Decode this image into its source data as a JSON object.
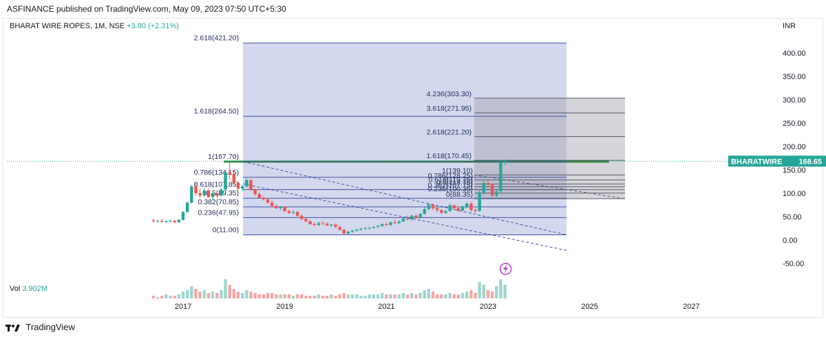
{
  "header": {
    "publisher_line": "ASFINANCE published on TradingView.com, May 09, 2023 07:50 UTC+5:30"
  },
  "legend": {
    "symbol": "BHARAT WIRE ROPES, 1M, NSE",
    "change": "+3.80 (+2.31%)"
  },
  "volume": {
    "label": "Vol",
    "value": "3.902M"
  },
  "price_tag": {
    "symbol": "BHARATWIRE",
    "price": "168.65"
  },
  "currency": "INR",
  "footer": {
    "brand": "TradingView"
  },
  "colors": {
    "up": "#26a69a",
    "down": "#ef5350",
    "fib_zone": "#c5cbe8",
    "ext_zone": "#a3a3ad"
  },
  "chart_data": {
    "type": "candlestick",
    "y_axis_ticks": [
      "400.00",
      "350.00",
      "300.00",
      "250.00",
      "200.00",
      "150.00",
      "100.00",
      "50.00",
      "0.00",
      "-50.00"
    ],
    "x_axis_ticks": [
      "2017",
      "2019",
      "2021",
      "2023",
      "2025",
      "2027"
    ],
    "ylim": [
      -65,
      440
    ],
    "fib_retracement": [
      {
        "label": "2.618(421.20)",
        "value": 421.2
      },
      {
        "label": "1.618(264.50)",
        "value": 264.5
      },
      {
        "label": "1(167.70)",
        "value": 167.7
      },
      {
        "label": "0.786(134.15)",
        "value": 134.15
      },
      {
        "label": "0.618(107.85)",
        "value": 107.85
      },
      {
        "label": "0.5(89.35)",
        "value": 89.35
      },
      {
        "label": "0.382(70.85)",
        "value": 70.85
      },
      {
        "label": "0.236(47.95)",
        "value": 47.95
      },
      {
        "label": "0(11.00)",
        "value": 11.0
      }
    ],
    "fib_extension": [
      {
        "label": "4.236(303.30)",
        "value": 303.3
      },
      {
        "label": "3.618(271.95)",
        "value": 271.95
      },
      {
        "label": "2.618(221.20)",
        "value": 221.2
      },
      {
        "label": "1.618(170.45)",
        "value": 170.45
      },
      {
        "label": "1(139.10)",
        "value": 139.1
      },
      {
        "label": "0.786(128.25)",
        "value": 128.25
      },
      {
        "label": "0.618(119.75)",
        "value": 119.75
      },
      {
        "label": "0.5(113.75)",
        "value": 113.75
      },
      {
        "label": "0.382(107.75)",
        "value": 107.75
      },
      {
        "label": "0.236(100.35)",
        "value": 100.35
      },
      {
        "label": "0(88.35)",
        "value": 88.35
      }
    ],
    "candles": [
      {
        "date": "2016-06",
        "o": 42,
        "h": 46,
        "l": 38,
        "c": 40
      },
      {
        "date": "2016-07",
        "o": 40,
        "h": 44,
        "l": 37,
        "c": 41
      },
      {
        "date": "2016-08",
        "o": 41,
        "h": 45,
        "l": 38,
        "c": 39
      },
      {
        "date": "2016-09",
        "o": 39,
        "h": 42,
        "l": 36,
        "c": 40
      },
      {
        "date": "2016-10",
        "o": 40,
        "h": 44,
        "l": 38,
        "c": 41
      },
      {
        "date": "2016-11",
        "o": 41,
        "h": 43,
        "l": 36,
        "c": 38
      },
      {
        "date": "2016-12",
        "o": 38,
        "h": 45,
        "l": 37,
        "c": 43
      },
      {
        "date": "2017-01",
        "o": 43,
        "h": 62,
        "l": 42,
        "c": 60
      },
      {
        "date": "2017-02",
        "o": 60,
        "h": 82,
        "l": 58,
        "c": 80
      },
      {
        "date": "2017-03",
        "o": 80,
        "h": 118,
        "l": 78,
        "c": 115
      },
      {
        "date": "2017-04",
        "o": 115,
        "h": 122,
        "l": 95,
        "c": 100
      },
      {
        "date": "2017-05",
        "o": 100,
        "h": 110,
        "l": 90,
        "c": 95
      },
      {
        "date": "2017-06",
        "o": 95,
        "h": 112,
        "l": 92,
        "c": 106
      },
      {
        "date": "2017-07",
        "o": 106,
        "h": 110,
        "l": 90,
        "c": 92
      },
      {
        "date": "2017-08",
        "o": 92,
        "h": 104,
        "l": 86,
        "c": 100
      },
      {
        "date": "2017-09",
        "o": 100,
        "h": 106,
        "l": 92,
        "c": 95
      },
      {
        "date": "2017-10",
        "o": 95,
        "h": 110,
        "l": 93,
        "c": 108
      },
      {
        "date": "2017-11",
        "o": 108,
        "h": 150,
        "l": 105,
        "c": 145
      },
      {
        "date": "2017-12",
        "o": 145,
        "h": 168,
        "l": 130,
        "c": 140
      },
      {
        "date": "2018-01",
        "o": 140,
        "h": 150,
        "l": 118,
        "c": 122
      },
      {
        "date": "2018-02",
        "o": 122,
        "h": 125,
        "l": 105,
        "c": 110
      },
      {
        "date": "2018-03",
        "o": 110,
        "h": 118,
        "l": 104,
        "c": 115
      },
      {
        "date": "2018-04",
        "o": 115,
        "h": 132,
        "l": 112,
        "c": 128
      },
      {
        "date": "2018-05",
        "o": 128,
        "h": 130,
        "l": 105,
        "c": 108
      },
      {
        "date": "2018-06",
        "o": 108,
        "h": 110,
        "l": 95,
        "c": 98
      },
      {
        "date": "2018-07",
        "o": 98,
        "h": 102,
        "l": 88,
        "c": 90
      },
      {
        "date": "2018-08",
        "o": 90,
        "h": 94,
        "l": 84,
        "c": 87
      },
      {
        "date": "2018-09",
        "o": 87,
        "h": 90,
        "l": 78,
        "c": 80
      },
      {
        "date": "2018-10",
        "o": 80,
        "h": 84,
        "l": 70,
        "c": 73
      },
      {
        "date": "2018-11",
        "o": 73,
        "h": 76,
        "l": 66,
        "c": 68
      },
      {
        "date": "2018-12",
        "o": 68,
        "h": 73,
        "l": 64,
        "c": 70
      },
      {
        "date": "2019-01",
        "o": 70,
        "h": 72,
        "l": 60,
        "c": 62
      },
      {
        "date": "2019-02",
        "o": 62,
        "h": 65,
        "l": 55,
        "c": 58
      },
      {
        "date": "2019-03",
        "o": 58,
        "h": 64,
        "l": 56,
        "c": 60
      },
      {
        "date": "2019-04",
        "o": 60,
        "h": 62,
        "l": 50,
        "c": 52
      },
      {
        "date": "2019-05",
        "o": 52,
        "h": 55,
        "l": 42,
        "c": 45
      },
      {
        "date": "2019-06",
        "o": 45,
        "h": 48,
        "l": 38,
        "c": 40
      },
      {
        "date": "2019-07",
        "o": 40,
        "h": 42,
        "l": 32,
        "c": 34
      },
      {
        "date": "2019-08",
        "o": 34,
        "h": 38,
        "l": 30,
        "c": 32
      },
      {
        "date": "2019-09",
        "o": 32,
        "h": 40,
        "l": 30,
        "c": 36
      },
      {
        "date": "2019-10",
        "o": 36,
        "h": 40,
        "l": 32,
        "c": 35
      },
      {
        "date": "2019-11",
        "o": 35,
        "h": 38,
        "l": 30,
        "c": 31
      },
      {
        "date": "2019-12",
        "o": 31,
        "h": 35,
        "l": 28,
        "c": 33
      },
      {
        "date": "2020-01",
        "o": 33,
        "h": 36,
        "l": 26,
        "c": 28
      },
      {
        "date": "2020-02",
        "o": 28,
        "h": 30,
        "l": 20,
        "c": 22
      },
      {
        "date": "2020-03",
        "o": 22,
        "h": 24,
        "l": 11,
        "c": 14
      },
      {
        "date": "2020-04",
        "o": 14,
        "h": 20,
        "l": 12,
        "c": 18
      },
      {
        "date": "2020-05",
        "o": 18,
        "h": 22,
        "l": 15,
        "c": 20
      },
      {
        "date": "2020-06",
        "o": 20,
        "h": 24,
        "l": 18,
        "c": 22
      },
      {
        "date": "2020-07",
        "o": 22,
        "h": 26,
        "l": 20,
        "c": 24
      },
      {
        "date": "2020-08",
        "o": 24,
        "h": 28,
        "l": 22,
        "c": 25
      },
      {
        "date": "2020-09",
        "o": 25,
        "h": 28,
        "l": 22,
        "c": 26
      },
      {
        "date": "2020-10",
        "o": 26,
        "h": 30,
        "l": 24,
        "c": 28
      },
      {
        "date": "2020-11",
        "o": 28,
        "h": 32,
        "l": 26,
        "c": 30
      },
      {
        "date": "2020-12",
        "o": 30,
        "h": 36,
        "l": 28,
        "c": 34
      },
      {
        "date": "2021-01",
        "o": 34,
        "h": 38,
        "l": 30,
        "c": 32
      },
      {
        "date": "2021-02",
        "o": 32,
        "h": 40,
        "l": 30,
        "c": 38
      },
      {
        "date": "2021-03",
        "o": 38,
        "h": 44,
        "l": 34,
        "c": 36
      },
      {
        "date": "2021-04",
        "o": 36,
        "h": 42,
        "l": 34,
        "c": 40
      },
      {
        "date": "2021-05",
        "o": 40,
        "h": 48,
        "l": 38,
        "c": 46
      },
      {
        "date": "2021-06",
        "o": 46,
        "h": 52,
        "l": 42,
        "c": 44
      },
      {
        "date": "2021-07",
        "o": 44,
        "h": 54,
        "l": 42,
        "c": 52
      },
      {
        "date": "2021-08",
        "o": 52,
        "h": 56,
        "l": 46,
        "c": 48
      },
      {
        "date": "2021-09",
        "o": 48,
        "h": 58,
        "l": 46,
        "c": 56
      },
      {
        "date": "2021-10",
        "o": 56,
        "h": 70,
        "l": 54,
        "c": 66
      },
      {
        "date": "2021-11",
        "o": 66,
        "h": 80,
        "l": 64,
        "c": 76
      },
      {
        "date": "2021-12",
        "o": 76,
        "h": 78,
        "l": 64,
        "c": 68
      },
      {
        "date": "2022-01",
        "o": 68,
        "h": 72,
        "l": 60,
        "c": 64
      },
      {
        "date": "2022-02",
        "o": 64,
        "h": 66,
        "l": 56,
        "c": 58
      },
      {
        "date": "2022-03",
        "o": 58,
        "h": 64,
        "l": 56,
        "c": 62
      },
      {
        "date": "2022-04",
        "o": 62,
        "h": 78,
        "l": 60,
        "c": 74
      },
      {
        "date": "2022-05",
        "o": 74,
        "h": 76,
        "l": 64,
        "c": 68
      },
      {
        "date": "2022-06",
        "o": 68,
        "h": 72,
        "l": 60,
        "c": 63
      },
      {
        "date": "2022-07",
        "o": 63,
        "h": 74,
        "l": 62,
        "c": 72
      },
      {
        "date": "2022-08",
        "o": 72,
        "h": 80,
        "l": 68,
        "c": 78
      },
      {
        "date": "2022-09",
        "o": 78,
        "h": 82,
        "l": 60,
        "c": 64
      },
      {
        "date": "2022-10",
        "o": 64,
        "h": 68,
        "l": 58,
        "c": 62
      },
      {
        "date": "2022-11",
        "o": 62,
        "h": 106,
        "l": 60,
        "c": 102
      },
      {
        "date": "2022-12",
        "o": 102,
        "h": 128,
        "l": 96,
        "c": 122
      },
      {
        "date": "2023-01",
        "o": 122,
        "h": 130,
        "l": 112,
        "c": 118
      },
      {
        "date": "2023-02",
        "o": 118,
        "h": 120,
        "l": 92,
        "c": 95
      },
      {
        "date": "2023-03",
        "o": 95,
        "h": 108,
        "l": 88,
        "c": 104
      },
      {
        "date": "2023-04",
        "o": 104,
        "h": 172,
        "l": 102,
        "c": 165
      },
      {
        "date": "2023-05",
        "o": 165,
        "h": 172,
        "l": 160,
        "c": 168.65
      }
    ],
    "volume_relative": [
      2,
      1,
      2,
      3,
      2,
      2,
      3,
      5,
      6,
      9,
      7,
      5,
      6,
      4,
      5,
      4,
      6,
      14,
      10,
      7,
      5,
      4,
      6,
      5,
      4,
      3,
      3,
      4,
      4,
      3,
      3,
      3,
      3,
      2,
      3,
      3,
      2,
      2,
      2,
      3,
      2,
      2,
      3,
      2,
      3,
      4,
      3,
      3,
      3,
      2,
      2,
      3,
      3,
      3,
      4,
      3,
      3,
      3,
      3,
      4,
      3,
      4,
      3,
      4,
      6,
      7,
      5,
      3,
      3,
      3,
      4,
      3,
      3,
      4,
      5,
      6,
      4,
      12,
      10,
      6,
      5,
      9,
      14,
      10
    ]
  }
}
